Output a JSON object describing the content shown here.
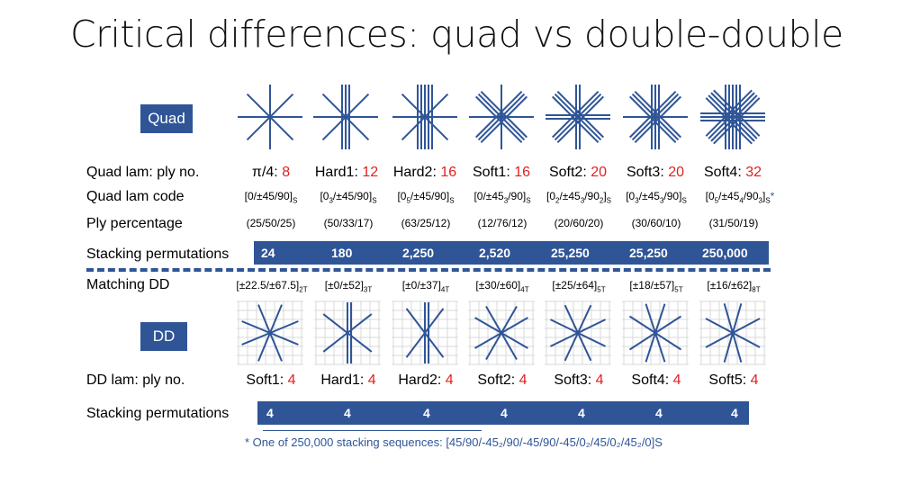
{
  "title": "Critical differences: quad vs double-double",
  "labels": {
    "quad_badge": "Quad",
    "dd_badge": "DD",
    "quad_ply_no": "Quad lam: ply no.",
    "quad_code": "Quad lam code",
    "ply_pct": "Ply percentage",
    "stack_perm": "Stacking permutations",
    "matching_dd": "Matching DD",
    "dd_ply_no": "DD lam: ply no.",
    "dd_stack_perm": "Stacking permutations"
  },
  "quad_names": [
    "π/4: ",
    "Hard1: ",
    "Hard2: ",
    "Soft1: ",
    "Soft2: ",
    "Soft3: ",
    "Soft4: "
  ],
  "quad_plies": [
    "8",
    "12",
    "16",
    "16",
    "20",
    "20",
    "32"
  ],
  "quad_codes": [
    "[0/±45/90]",
    "[0",
    "[0",
    "[0/±45",
    "[0",
    "[0",
    "[0"
  ],
  "quad_code_tail_star": "*",
  "ply_percentages": [
    "(25/50/25)",
    "(50/33/17)",
    "(63/25/12)",
    "(12/76/12)",
    "(20/60/20)",
    "(30/60/10)",
    "(31/50/19)"
  ],
  "quad_permutations": [
    "24",
    "180",
    "2,250",
    "2,520",
    "25,250",
    "25,250",
    "250,000"
  ],
  "matching_dd_main": [
    "[±22.5/±67.5]",
    "[±0/±52]",
    "[±0/±37]",
    "[±30/±60]",
    "[±25/±64]",
    "[±18/±57]",
    "[±16/±62]"
  ],
  "matching_dd_sub": [
    "2T",
    "3T",
    "4T",
    "4T",
    "5T",
    "5T",
    "8T"
  ],
  "dd_names": [
    "Soft1: ",
    "Hard1: ",
    "Hard2: ",
    "Soft2: ",
    "Soft3: ",
    "Soft4: ",
    "Soft5: "
  ],
  "dd_plies": [
    "4",
    "4",
    "4",
    "4",
    "4",
    "4",
    "4"
  ],
  "dd_permutations": [
    "4",
    "4",
    "4",
    "4",
    "4",
    "4",
    "4"
  ],
  "footnote": "*  One of 250,000 stacking sequences: [45/90/-45₂/90/-45/90/-45/0₂/45/0₂/45₂/0]S",
  "colors": {
    "accent": "#2f5597",
    "highlight": "#e02020"
  },
  "quad_icons": [
    {
      "icon": "pi-4-star-icon",
      "lines": {
        "0": 1,
        "45": 1,
        "90": 1,
        "135": 1
      }
    },
    {
      "icon": "hard1-star-icon",
      "lines": {
        "0": 3,
        "45": 1,
        "90": 1,
        "135": 1
      }
    },
    {
      "icon": "hard2-star-icon",
      "lines": {
        "0": 5,
        "45": 1,
        "90": 1,
        "135": 1
      }
    },
    {
      "icon": "soft1-star-icon",
      "lines": {
        "0": 1,
        "45": 3,
        "90": 1,
        "135": 3
      }
    },
    {
      "icon": "soft2-star-icon",
      "lines": {
        "0": 2,
        "45": 3,
        "90": 2,
        "135": 3
      }
    },
    {
      "icon": "soft3-star-icon",
      "lines": {
        "0": 3,
        "45": 3,
        "90": 1,
        "135": 3
      }
    },
    {
      "icon": "soft4-star-icon",
      "lines": {
        "0": 5,
        "45": 4,
        "90": 3,
        "135": 4
      }
    }
  ],
  "dd_icons": [
    {
      "icon": "dd-soft1-icon",
      "angles": [
        22.5,
        -22.5,
        67.5,
        -67.5
      ]
    },
    {
      "icon": "dd-hard1-icon",
      "angles": [
        0,
        0,
        52,
        -52
      ]
    },
    {
      "icon": "dd-hard2-icon",
      "angles": [
        0,
        0,
        37,
        -37
      ]
    },
    {
      "icon": "dd-soft2-icon",
      "angles": [
        30,
        -30,
        60,
        -60
      ]
    },
    {
      "icon": "dd-soft3-icon",
      "angles": [
        25,
        -25,
        64,
        -64
      ]
    },
    {
      "icon": "dd-soft4-icon",
      "angles": [
        18,
        -18,
        57,
        -57
      ]
    },
    {
      "icon": "dd-soft5-icon",
      "angles": [
        16,
        -16,
        62,
        -62
      ]
    }
  ]
}
